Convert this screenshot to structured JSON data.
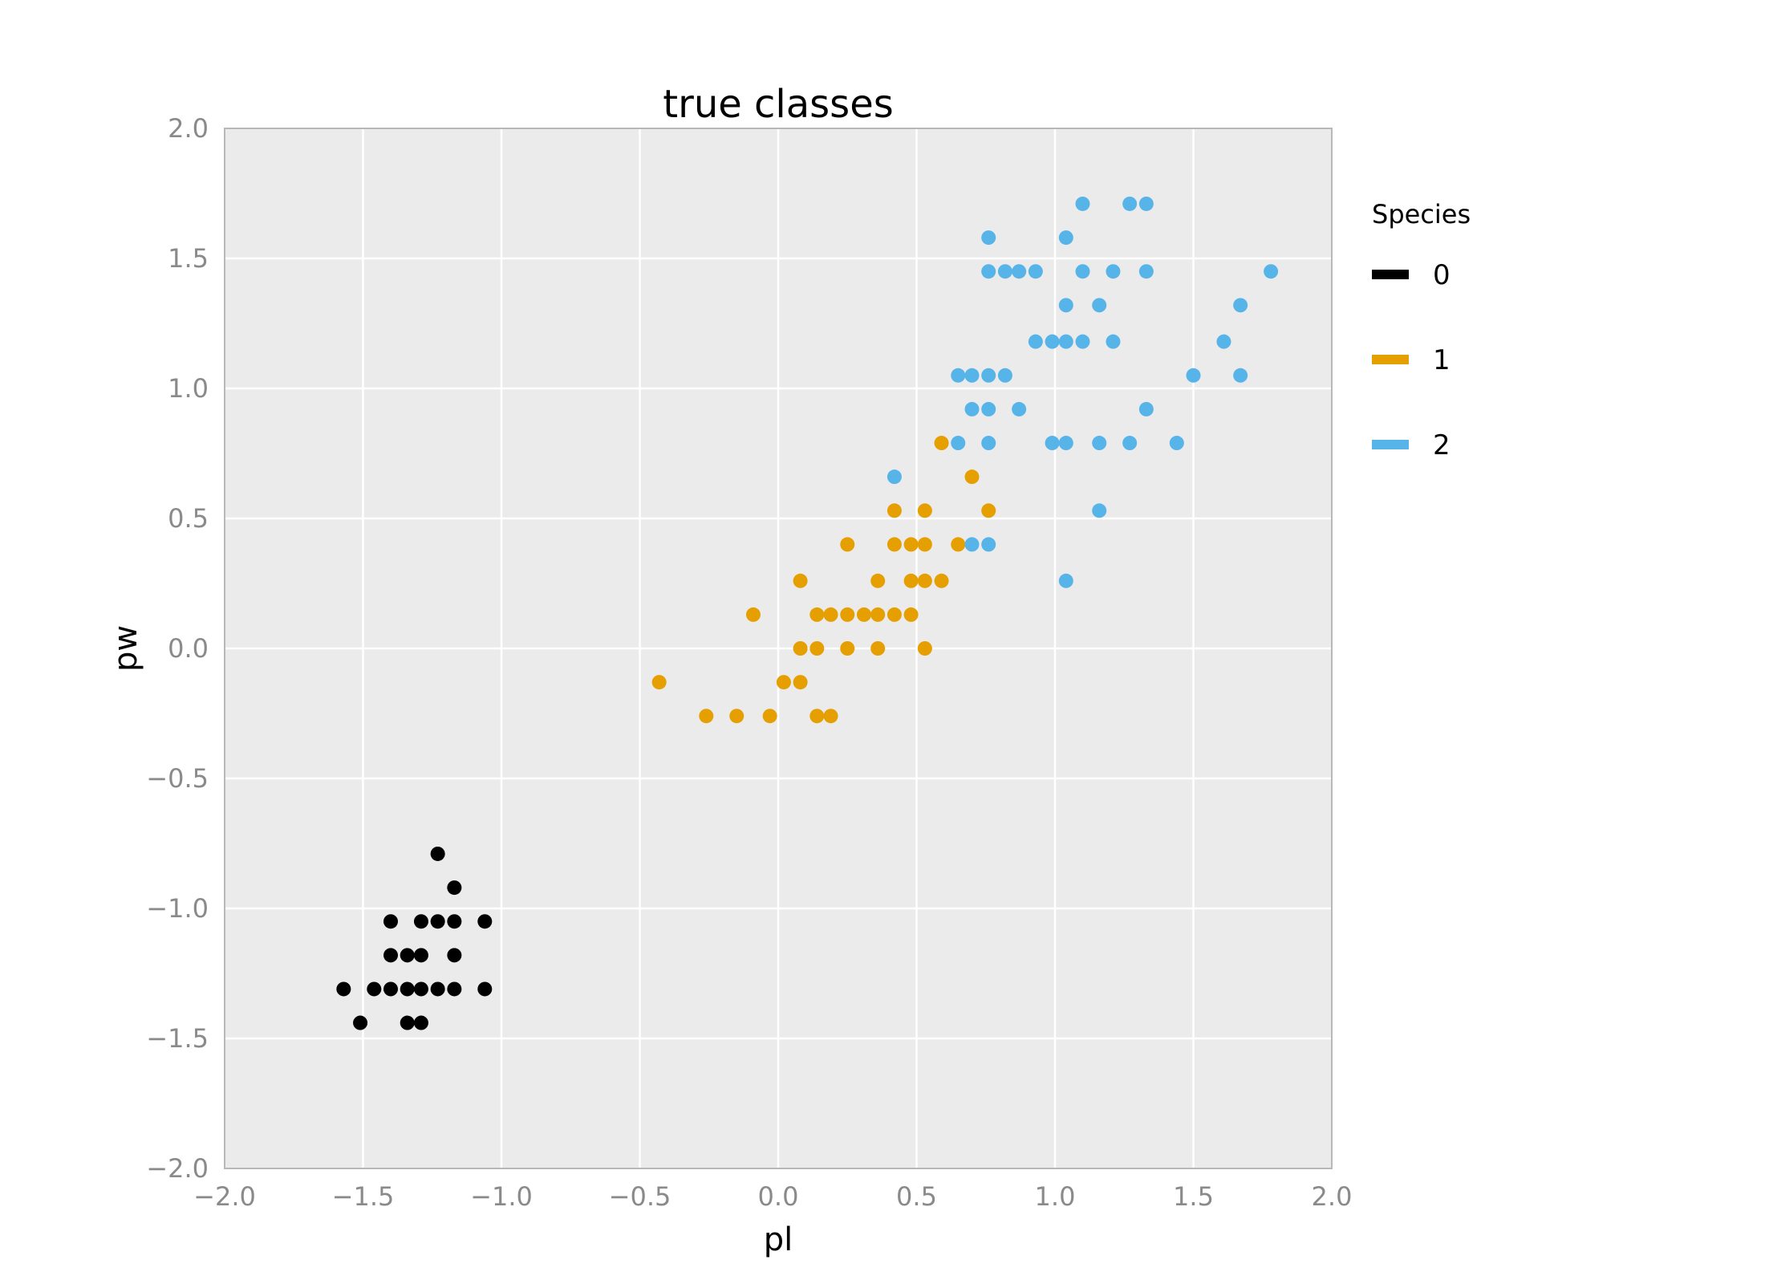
{
  "chart_data": {
    "type": "scatter",
    "title": "true classes",
    "xlabel": "pl",
    "ylabel": "pw",
    "xlim": [
      -2.0,
      2.0
    ],
    "ylim": [
      -2.0,
      2.0
    ],
    "xticks": [
      "−2.0",
      "−1.5",
      "−1.0",
      "−0.5",
      "0.0",
      "0.5",
      "1.0",
      "1.5",
      "2.0"
    ],
    "yticks": [
      "−2.0",
      "−1.5",
      "−1.0",
      "−0.5",
      "0.0",
      "0.5",
      "1.0",
      "1.5",
      "2.0"
    ],
    "grid": true,
    "background_color": "#ebebeb",
    "legend": {
      "title": "Species",
      "placement": "right"
    },
    "series": [
      {
        "name": "0",
        "color": "#000000",
        "points": [
          [
            -1.23,
            -0.79
          ],
          [
            -1.17,
            -0.92
          ],
          [
            -1.4,
            -1.05
          ],
          [
            -1.29,
            -1.05
          ],
          [
            -1.23,
            -1.05
          ],
          [
            -1.17,
            -1.05
          ],
          [
            -1.06,
            -1.05
          ],
          [
            -1.4,
            -1.18
          ],
          [
            -1.34,
            -1.18
          ],
          [
            -1.29,
            -1.18
          ],
          [
            -1.17,
            -1.18
          ],
          [
            -1.57,
            -1.31
          ],
          [
            -1.46,
            -1.31
          ],
          [
            -1.4,
            -1.31
          ],
          [
            -1.34,
            -1.31
          ],
          [
            -1.29,
            -1.31
          ],
          [
            -1.23,
            -1.31
          ],
          [
            -1.17,
            -1.31
          ],
          [
            -1.06,
            -1.31
          ],
          [
            -1.51,
            -1.44
          ],
          [
            -1.34,
            -1.44
          ],
          [
            -1.29,
            -1.44
          ]
        ]
      },
      {
        "name": "1",
        "color": "#e69f00",
        "points": [
          [
            0.59,
            0.79
          ],
          [
            0.7,
            0.66
          ],
          [
            0.42,
            0.53
          ],
          [
            0.53,
            0.53
          ],
          [
            0.76,
            0.53
          ],
          [
            0.25,
            0.4
          ],
          [
            0.42,
            0.4
          ],
          [
            0.48,
            0.4
          ],
          [
            0.53,
            0.4
          ],
          [
            0.65,
            0.4
          ],
          [
            0.08,
            0.26
          ],
          [
            0.36,
            0.26
          ],
          [
            0.48,
            0.26
          ],
          [
            0.53,
            0.26
          ],
          [
            0.59,
            0.26
          ],
          [
            -0.09,
            0.13
          ],
          [
            0.14,
            0.13
          ],
          [
            0.19,
            0.13
          ],
          [
            0.25,
            0.13
          ],
          [
            0.31,
            0.13
          ],
          [
            0.36,
            0.13
          ],
          [
            0.42,
            0.13
          ],
          [
            0.48,
            0.13
          ],
          [
            0.08,
            0.0
          ],
          [
            0.14,
            0.0
          ],
          [
            0.25,
            0.0
          ],
          [
            0.36,
            0.0
          ],
          [
            0.53,
            0.0
          ],
          [
            -0.43,
            -0.13
          ],
          [
            0.02,
            -0.13
          ],
          [
            0.08,
            -0.13
          ],
          [
            -0.26,
            -0.26
          ],
          [
            -0.15,
            -0.26
          ],
          [
            -0.03,
            -0.26
          ],
          [
            0.14,
            -0.26
          ],
          [
            0.19,
            -0.26
          ]
        ]
      },
      {
        "name": "2",
        "color": "#56b4e9",
        "points": [
          [
            1.1,
            1.71
          ],
          [
            1.27,
            1.71
          ],
          [
            1.33,
            1.71
          ],
          [
            0.76,
            1.58
          ],
          [
            1.04,
            1.58
          ],
          [
            0.76,
            1.45
          ],
          [
            0.82,
            1.45
          ],
          [
            0.87,
            1.45
          ],
          [
            0.93,
            1.45
          ],
          [
            1.1,
            1.45
          ],
          [
            1.21,
            1.45
          ],
          [
            1.33,
            1.45
          ],
          [
            1.78,
            1.45
          ],
          [
            1.04,
            1.32
          ],
          [
            1.16,
            1.32
          ],
          [
            1.67,
            1.32
          ],
          [
            0.93,
            1.18
          ],
          [
            0.99,
            1.18
          ],
          [
            1.04,
            1.18
          ],
          [
            1.1,
            1.18
          ],
          [
            1.21,
            1.18
          ],
          [
            1.61,
            1.18
          ],
          [
            0.65,
            1.05
          ],
          [
            0.7,
            1.05
          ],
          [
            0.76,
            1.05
          ],
          [
            0.82,
            1.05
          ],
          [
            1.5,
            1.05
          ],
          [
            1.67,
            1.05
          ],
          [
            0.7,
            0.92
          ],
          [
            0.76,
            0.92
          ],
          [
            0.87,
            0.92
          ],
          [
            1.33,
            0.92
          ],
          [
            0.65,
            0.79
          ],
          [
            0.76,
            0.79
          ],
          [
            0.99,
            0.79
          ],
          [
            1.04,
            0.79
          ],
          [
            1.16,
            0.79
          ],
          [
            1.27,
            0.79
          ],
          [
            1.44,
            0.79
          ],
          [
            0.42,
            0.66
          ],
          [
            1.16,
            0.53
          ],
          [
            0.7,
            0.4
          ],
          [
            0.76,
            0.4
          ],
          [
            1.04,
            0.26
          ]
        ]
      }
    ]
  }
}
